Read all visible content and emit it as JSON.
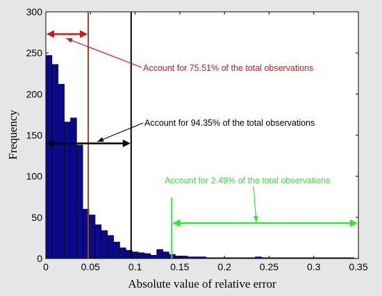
{
  "colors": {
    "figure_bg": "#e6e6e6",
    "plot_bg": "#ffffff",
    "bar_fill": "#0a0a8a",
    "bar_edge": "#000000",
    "red": "#dd1111",
    "black": "#000000",
    "green": "#33e633",
    "brown": "#8b4a2b"
  },
  "chart_data": {
    "type": "bar",
    "title": "",
    "xlabel": "Absolute value of relative error",
    "ylabel": "Frequency",
    "xlim": [
      0,
      0.35
    ],
    "ylim": [
      0,
      300
    ],
    "bin_width": 0.0069,
    "x_ticks": [
      "0",
      "0.05",
      "0.1",
      "0.15",
      "0.2",
      "0.25",
      "0.3",
      "0.35"
    ],
    "x_tick_values": [
      0,
      0.05,
      0.1,
      0.15,
      0.2,
      0.25,
      0.3,
      0.35
    ],
    "y_ticks": [
      "0",
      "50",
      "100",
      "150",
      "200",
      "250",
      "300"
    ],
    "y_tick_values": [
      0,
      50,
      100,
      150,
      200,
      250,
      300
    ],
    "bins_left": [
      0.0,
      0.0069,
      0.0138,
      0.0207,
      0.0276,
      0.0345,
      0.0414,
      0.0483,
      0.0552,
      0.0621,
      0.069,
      0.0759,
      0.0828,
      0.0897,
      0.0966,
      0.1035,
      0.1104,
      0.1173,
      0.1242,
      0.1311,
      0.138,
      0.1449,
      0.1518,
      0.1587,
      0.1656,
      0.1725,
      0.1794,
      0.1863,
      0.1932,
      0.2001,
      0.207,
      0.2139,
      0.2208,
      0.2277,
      0.2346,
      0.2415,
      0.2484,
      0.2553,
      0.2622,
      0.2691,
      0.276,
      0.2829,
      0.2898,
      0.2967,
      0.3036,
      0.3105,
      0.3174,
      0.3243,
      0.3312,
      0.3381
    ],
    "values": [
      247,
      236,
      212,
      166,
      171,
      138,
      60,
      53,
      41,
      34,
      28,
      20,
      13,
      10,
      8,
      7,
      6,
      4,
      11,
      8,
      5,
      3,
      3,
      2,
      2,
      2,
      1,
      1,
      1,
      1,
      1,
      1,
      1,
      1,
      2,
      1,
      1,
      1,
      1,
      1,
      1,
      1,
      1,
      1,
      1,
      1,
      1,
      1,
      1,
      1
    ],
    "vertical_lines": [
      {
        "name": "red-threshold-line",
        "x": 0.0475,
        "y_top": 300,
        "color_key": "brown"
      },
      {
        "name": "black-threshold-line",
        "x": 0.0955,
        "y_top": 300,
        "color_key": "black"
      },
      {
        "name": "green-threshold-line",
        "x": 0.141,
        "y_top": 74,
        "color_key": "green"
      }
    ],
    "range_arrows": [
      {
        "name": "red-range-arrow",
        "x0": 0,
        "x1": 0.0475,
        "y": 273,
        "color_key": "red"
      },
      {
        "name": "black-range-arrow",
        "x0": 0,
        "x1": 0.0955,
        "y": 140,
        "color_key": "black"
      },
      {
        "name": "green-range-arrow",
        "x0": 0.141,
        "x1": 0.35,
        "y": 43,
        "color_key": "green"
      }
    ],
    "annotations": [
      {
        "name": "red-annotation",
        "text": "Account for 75.51% of the total observations",
        "color_key": "red"
      },
      {
        "name": "black-annotation",
        "text": "Account for 94.35% of the total observations",
        "color_key": "black"
      },
      {
        "name": "green-annotation",
        "text": "Account for 2.49% of the total observations",
        "color_key": "green"
      }
    ]
  }
}
